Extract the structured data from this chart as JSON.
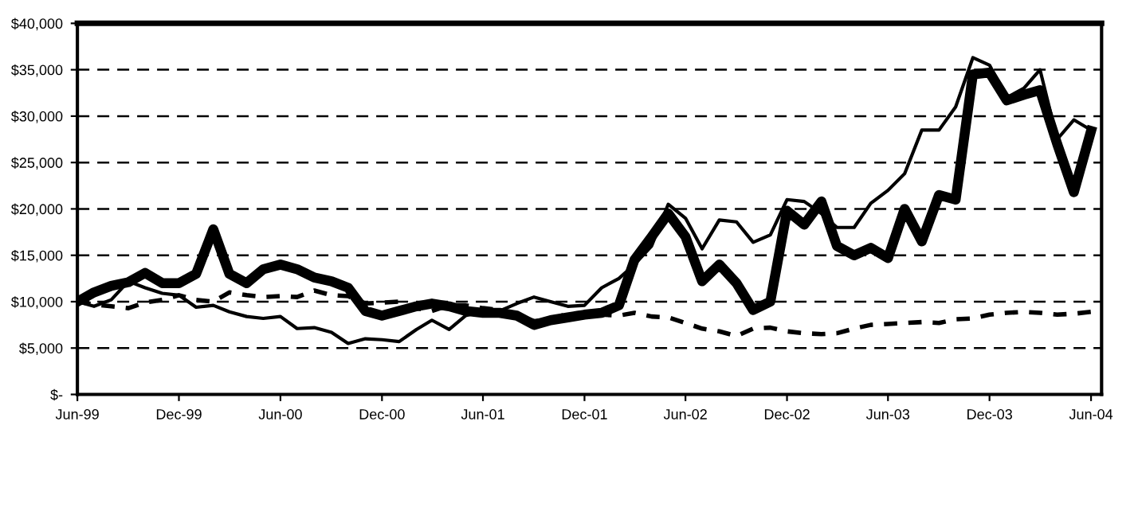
{
  "chart_data": {
    "type": "line",
    "x": [
      "1999-06",
      "1999-07",
      "1999-08",
      "1999-09",
      "1999-10",
      "1999-11",
      "1999-12",
      "2000-01",
      "2000-02",
      "2000-03",
      "2000-04",
      "2000-05",
      "2000-06",
      "2000-07",
      "2000-08",
      "2000-09",
      "2000-10",
      "2000-11",
      "2000-12",
      "2001-01",
      "2001-02",
      "2001-03",
      "2001-04",
      "2001-05",
      "2001-06",
      "2001-07",
      "2001-08",
      "2001-09",
      "2001-10",
      "2001-11",
      "2001-12",
      "2002-01",
      "2002-02",
      "2002-03",
      "2002-04",
      "2002-05",
      "2002-06",
      "2002-07",
      "2002-08",
      "2002-09",
      "2002-10",
      "2002-11",
      "2002-12",
      "2003-01",
      "2003-02",
      "2003-03",
      "2003-04",
      "2003-05",
      "2003-06",
      "2003-07",
      "2003-08",
      "2003-09",
      "2003-10",
      "2003-11",
      "2003-12",
      "2004-01",
      "2004-02",
      "2004-03",
      "2004-04",
      "2004-05",
      "2004-06"
    ],
    "series": [
      {
        "color": "#000000",
        "line_style": "solid",
        "values": [
          10000,
          11000,
          11700,
          12100,
          13100,
          12000,
          12000,
          13000,
          17800,
          13000,
          12000,
          13500,
          14000,
          13500,
          12600,
          12200,
          11500,
          9000,
          8500,
          9000,
          9500,
          9800,
          9500,
          9000,
          8800,
          8800,
          8500,
          7500,
          8000,
          8300,
          8600,
          8800,
          9600,
          14500,
          17000,
          19500,
          17000,
          12200,
          14000,
          12000,
          9100,
          10000,
          19800,
          18300,
          20800,
          16000,
          15000,
          15800,
          14700,
          20000,
          16500,
          21500,
          21000,
          34500,
          34700,
          31700,
          32300,
          32800,
          27000,
          21800,
          28400
        ]
      },
      {
        "color": "#000000",
        "line_style": "dashed",
        "values": [
          10000,
          9700,
          9500,
          9300,
          9900,
          10200,
          10700,
          10200,
          10000,
          11000,
          10700,
          10500,
          10600,
          10500,
          11200,
          10700,
          10600,
          9800,
          9900,
          10000,
          9300,
          9000,
          9600,
          9600,
          9300,
          9100,
          8600,
          7900,
          8100,
          8700,
          8800,
          8600,
          8500,
          8800,
          8400,
          8300,
          7700,
          7100,
          6800,
          6300,
          7100,
          7200,
          6800,
          6600,
          6500,
          6600,
          7100,
          7500,
          7600,
          7700,
          7800,
          7700,
          8100,
          8200,
          8600,
          8800,
          8900,
          8800,
          8600,
          8700,
          8900
        ]
      },
      {
        "color": "#000000",
        "line_style": "solid",
        "values": [
          10000,
          9500,
          10200,
          12200,
          11500,
          10900,
          10700,
          9400,
          9600,
          8900,
          8400,
          8200,
          8400,
          7100,
          7200,
          6700,
          5500,
          6000,
          5900,
          5700,
          7000,
          8000,
          7000,
          8500,
          9000,
          9000,
          9800,
          10500,
          10000,
          9500,
          9600,
          11500,
          12500,
          14000,
          16000,
          20500,
          19000,
          15700,
          18800,
          18600,
          16400,
          17200,
          21000,
          20800,
          19500,
          18000,
          18000,
          20600,
          22000,
          23800,
          28500,
          28500,
          31000,
          36300,
          35500,
          32000,
          33000,
          35000,
          27500,
          29600,
          28500
        ]
      }
    ],
    "xlim": [
      "1999-06",
      "2004-06-20"
    ],
    "xticks": [
      {
        "value": "1999-06",
        "label": "Jun-99"
      },
      {
        "value": "1999-12",
        "label": "Dec-99"
      },
      {
        "value": "2000-06",
        "label": "Jun-00"
      },
      {
        "value": "2000-12",
        "label": "Dec-00"
      },
      {
        "value": "2001-06",
        "label": "Jun-01"
      },
      {
        "value": "2001-12",
        "label": "Dec-01"
      },
      {
        "value": "2002-06",
        "label": "Jun-02"
      },
      {
        "value": "2002-12",
        "label": "Dec-02"
      },
      {
        "value": "2003-06",
        "label": "Jun-03"
      },
      {
        "value": "2003-12",
        "label": "Dec-03"
      },
      {
        "value": "2004-06",
        "label": "Jun-04"
      }
    ],
    "ylim": [
      0,
      40000
    ],
    "yticks": [
      {
        "value": 0,
        "label": "$-"
      },
      {
        "value": 5000,
        "label": "$5,000"
      },
      {
        "value": 10000,
        "label": "$10,000"
      },
      {
        "value": 15000,
        "label": "$15,000"
      },
      {
        "value": 20000,
        "label": "$20,000"
      },
      {
        "value": 25000,
        "label": "$25,000"
      },
      {
        "value": 30000,
        "label": "$30,000"
      },
      {
        "value": 35000,
        "label": "$35,000"
      },
      {
        "value": 40000,
        "label": "$40,000"
      }
    ],
    "grid": "y"
  }
}
